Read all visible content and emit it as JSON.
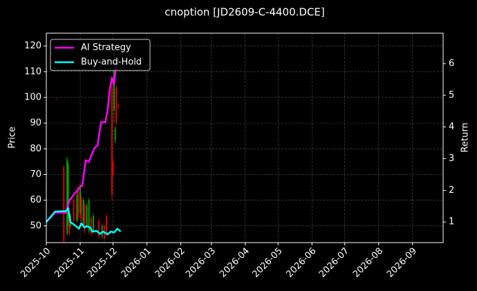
{
  "chart_data": {
    "type": "candlestick",
    "title": "cnoption [JD2609-C-4400.DCE]",
    "ylabel": "Price",
    "y2label": "Return",
    "grid": true,
    "legend": "upper left",
    "xlim": [
      0,
      363
    ],
    "xticks": [
      {
        "value": 0,
        "label": "2025-10"
      },
      {
        "value": 31,
        "label": "2025-11"
      },
      {
        "value": 61,
        "label": "2025-12"
      },
      {
        "value": 92,
        "label": "2026-01"
      },
      {
        "value": 123,
        "label": "2026-02"
      },
      {
        "value": 151,
        "label": "2026-03"
      },
      {
        "value": 182,
        "label": "2026-04"
      },
      {
        "value": 212,
        "label": "2026-05"
      },
      {
        "value": 243,
        "label": "2026-06"
      },
      {
        "value": 273,
        "label": "2026-07"
      },
      {
        "value": 304,
        "label": "2026-08"
      },
      {
        "value": 335,
        "label": "2026-09"
      }
    ],
    "ylim": [
      43.5,
      125
    ],
    "yticks": [
      50,
      60,
      70,
      80,
      90,
      100,
      110,
      120
    ],
    "y2lim": [
      0.35,
      6.96
    ],
    "y2ticks": [
      1,
      2,
      3,
      4,
      5,
      6
    ],
    "ohlc": {
      "up_color": "#00a000",
      "down_color": "#e00000",
      "x": [
        9,
        16,
        19,
        20,
        21,
        22,
        25,
        28,
        29,
        31,
        32,
        34,
        35,
        37,
        39,
        41,
        43,
        48,
        51,
        53,
        55,
        60,
        61,
        62,
        63,
        64,
        66
      ],
      "open": [
        99.5,
        73,
        47,
        52,
        55,
        50,
        60,
        52,
        65,
        55,
        61,
        50,
        58,
        50,
        48,
        53,
        48,
        52,
        46,
        50,
        54,
        104,
        75,
        95,
        83,
        104,
        97
      ],
      "high": [
        99.6,
        73.5,
        77,
        75,
        56,
        55,
        61,
        64,
        66,
        67,
        62,
        61,
        59,
        59,
        61,
        54,
        55,
        53,
        51,
        51,
        55,
        108,
        76,
        120,
        89,
        105,
        97.5
      ],
      "low": [
        99.4,
        43.5,
        46,
        50,
        46,
        49,
        51,
        51,
        52,
        54,
        51,
        49,
        47,
        49,
        47,
        46,
        47,
        45,
        45,
        44,
        46,
        60,
        69,
        90,
        82,
        89,
        95.5
      ],
      "close": [
        99.4,
        44,
        76,
        74,
        47,
        54,
        52,
        62,
        53,
        66,
        52,
        60,
        48,
        58,
        60,
        47,
        54,
        46,
        50,
        45,
        47,
        62,
        70,
        110,
        88,
        90,
        96
      ]
    },
    "series": [
      {
        "name": "AI Strategy",
        "color": "#ff00ff",
        "axis": "y2",
        "x": [
          0,
          8,
          18,
          21,
          26,
          30,
          33,
          36,
          39,
          42,
          44,
          47,
          50,
          54,
          56,
          58,
          60,
          62,
          64
        ],
        "values": [
          1.0,
          1.3,
          1.3,
          1.68,
          1.9,
          2.07,
          2.16,
          2.95,
          2.9,
          3.17,
          3.33,
          3.43,
          4.15,
          4.15,
          4.52,
          5.17,
          5.56,
          5.35,
          6.04
        ]
      },
      {
        "name": "Buy-and-Hold",
        "color": "#00ffff",
        "axis": "y2",
        "x": [
          0,
          8,
          18,
          20,
          22,
          26,
          30,
          32,
          35,
          37,
          40,
          42,
          46,
          49,
          52,
          56,
          59,
          62,
          65,
          68
        ],
        "values": [
          1.0,
          1.33,
          1.35,
          1.44,
          1.0,
          0.9,
          0.79,
          0.96,
          0.83,
          0.87,
          0.83,
          0.7,
          0.72,
          0.63,
          0.7,
          0.61,
          0.7,
          0.67,
          0.79,
          0.7
        ]
      }
    ]
  }
}
